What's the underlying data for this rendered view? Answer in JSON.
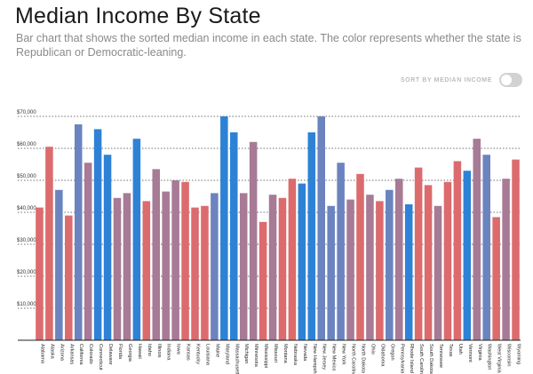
{
  "header": {
    "title": "Median Income By State",
    "subtitle": "Bar chart that shows the sorted median income in each state. The color represents whether the state is Republican or Democratic-leaning."
  },
  "controls": {
    "sort_label": "SORT BY MEDIAN INCOME",
    "sort_enabled": false
  },
  "colors": {
    "republican": "#dc6b6d",
    "democratic": "#6b84bf",
    "strong_democratic": "#2e82d6",
    "mixed": "#a77a96",
    "axis": "#222222",
    "grid": "#444444"
  },
  "chart_data": {
    "type": "bar",
    "title": "",
    "xlabel": "",
    "ylabel": "",
    "ylim": [
      0,
      70000
    ],
    "yticks": [
      10000,
      20000,
      30000,
      40000,
      50000,
      60000,
      70000
    ],
    "ytick_labels": [
      "$10,000",
      "$20,000",
      "$30,000",
      "$40,000",
      "$50,000",
      "$60,000",
      "$70,000"
    ],
    "grid": "horizontal dotted",
    "categories": [
      "Alabama",
      "Alaska",
      "Arizona",
      "Arkansas",
      "California",
      "Colorado",
      "Connecticut",
      "Delaware",
      "Florida",
      "Georgia",
      "Hawaii",
      "Idaho",
      "Illinois",
      "Indiana",
      "Iowa",
      "Kansas",
      "Kentucky",
      "Louisiana",
      "Maine",
      "Maryland",
      "Massachusetts",
      "Michigan",
      "Minnesota",
      "Mississippi",
      "Missouri",
      "Montana",
      "Nebraska",
      "Nevada",
      "New Hampshire",
      "New Jersey",
      "New Mexico",
      "New York",
      "North Carolina",
      "North Dakota",
      "Ohio",
      "Oklahoma",
      "Oregon",
      "Pennsylvania",
      "Rhode Island",
      "South Carolina",
      "South Dakota",
      "Tennessee",
      "Texas",
      "Utah",
      "Vermont",
      "Virginia",
      "Washington",
      "West Virginia",
      "Wisconsin",
      "Wyoming"
    ],
    "values": [
      41500,
      60500,
      47000,
      39000,
      67500,
      55500,
      66000,
      58000,
      44500,
      46000,
      63000,
      43500,
      53500,
      46500,
      50000,
      49500,
      41500,
      42000,
      46000,
      70000,
      65000,
      46000,
      62000,
      37000,
      45500,
      44500,
      50500,
      49000,
      65000,
      70000,
      42000,
      55500,
      44000,
      52000,
      45500,
      43500,
      47000,
      50500,
      42500,
      54000,
      48500,
      42000,
      49500,
      56000,
      53000,
      63000,
      58000,
      38500,
      50500,
      56500
    ],
    "leaning": [
      "R",
      "R",
      "D",
      "R",
      "D",
      "M",
      "S",
      "S",
      "M",
      "M",
      "S",
      "R",
      "M",
      "M",
      "M",
      "R",
      "R",
      "R",
      "D",
      "S",
      "S",
      "M",
      "M",
      "R",
      "M",
      "R",
      "R",
      "S",
      "S",
      "D",
      "D",
      "D",
      "M",
      "R",
      "M",
      "R",
      "D",
      "M",
      "S",
      "R",
      "R",
      "M",
      "R",
      "R",
      "S",
      "M",
      "D",
      "R",
      "M",
      "R"
    ]
  }
}
